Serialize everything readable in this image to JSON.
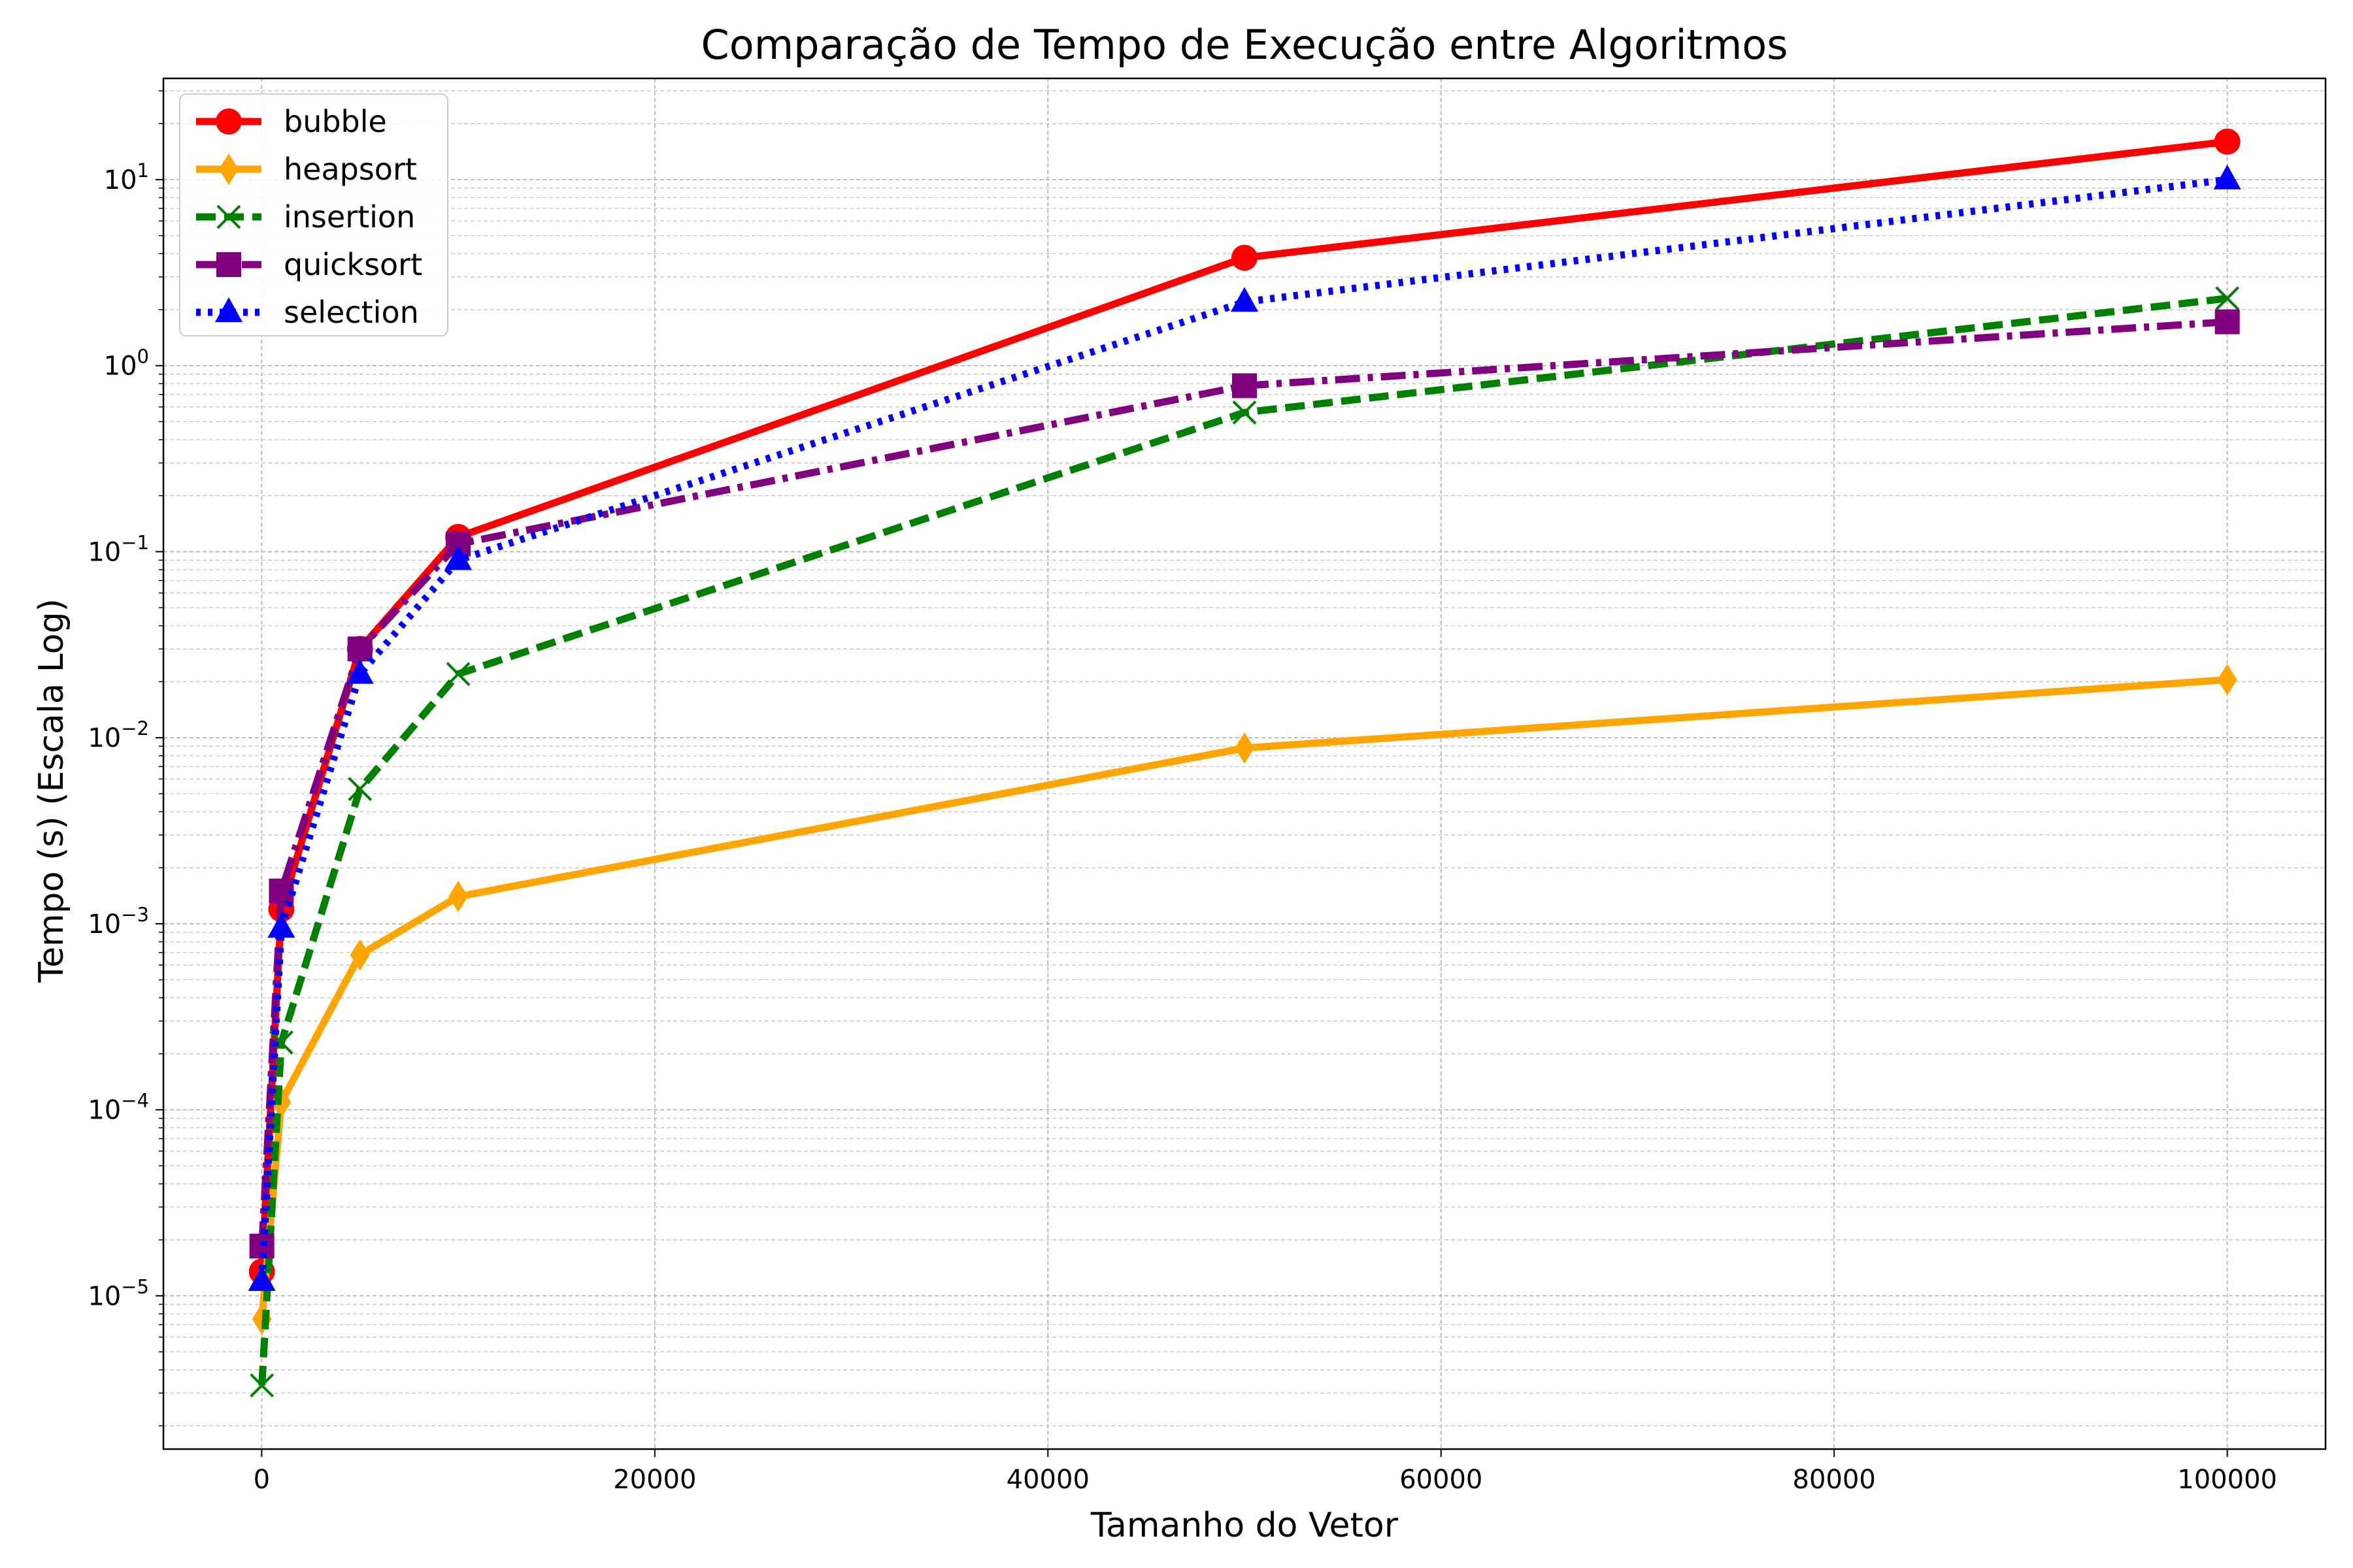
{
  "chart_data": {
    "type": "line",
    "title": "Comparação de Tempo de Execução entre Algoritmos",
    "xlabel": "Tamanho do Vetor",
    "ylabel": "Tempo (s) (Escala Log)",
    "x": [
      10,
      1000,
      5000,
      10000,
      50000,
      100000
    ],
    "xlim": [
      -5000,
      105000
    ],
    "ylim": [
      1.5e-06,
      35
    ],
    "yscale": "log",
    "grid": true,
    "legend_position": "top-left",
    "x_ticks": [
      {
        "value": 0,
        "label": "0"
      },
      {
        "value": 20000,
        "label": "20000"
      },
      {
        "value": 40000,
        "label": "40000"
      },
      {
        "value": 60000,
        "label": "60000"
      },
      {
        "value": 80000,
        "label": "80000"
      },
      {
        "value": 100000,
        "label": "100000"
      }
    ],
    "y_ticks": [
      {
        "value": 1e-05,
        "base": "10",
        "exp": "−5"
      },
      {
        "value": 0.0001,
        "base": "10",
        "exp": "−4"
      },
      {
        "value": 0.001,
        "base": "10",
        "exp": "−3"
      },
      {
        "value": 0.01,
        "base": "10",
        "exp": "−2"
      },
      {
        "value": 0.1,
        "base": "10",
        "exp": "−1"
      },
      {
        "value": 1,
        "base": "10",
        "exp": "0"
      },
      {
        "value": 10,
        "base": "10",
        "exp": "1"
      }
    ],
    "series": [
      {
        "name": "bubble",
        "color": "#ff0000",
        "dash": "solid",
        "marker": "circle",
        "values": [
          1.35e-05,
          0.0012,
          0.03,
          0.12,
          3.8,
          16.0
        ]
      },
      {
        "name": "heapsort",
        "color": "#ffa500",
        "dash": "solid",
        "marker": "thin-diamond",
        "values": [
          7.5e-06,
          0.00011,
          0.00068,
          0.0014,
          0.0088,
          0.0205
        ]
      },
      {
        "name": "insertion",
        "color": "#008000",
        "dash": "dashed",
        "marker": "x",
        "values": [
          3.3e-06,
          0.00023,
          0.0053,
          0.022,
          0.56,
          2.3
        ]
      },
      {
        "name": "quicksort",
        "color": "#800080",
        "dash": "dashdot",
        "marker": "square",
        "values": [
          1.85e-05,
          0.0015,
          0.03,
          0.11,
          0.78,
          1.72
        ]
      },
      {
        "name": "selection",
        "color": "#0000ff",
        "dash": "dotted",
        "marker": "triangle",
        "values": [
          1.2e-05,
          0.00095,
          0.022,
          0.09,
          2.2,
          10.0
        ]
      }
    ]
  }
}
